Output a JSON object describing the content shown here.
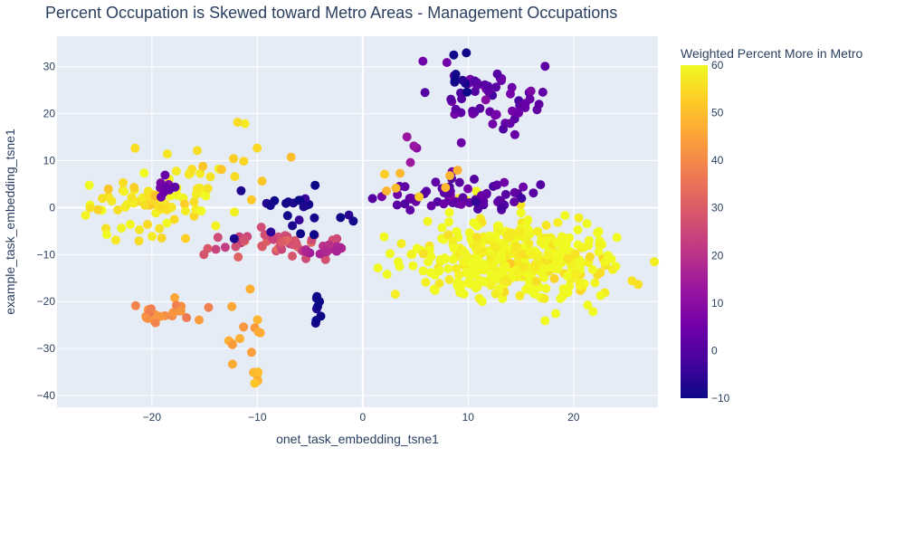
{
  "chart_data": {
    "type": "scatter",
    "title": "Percent Occupation is Skewed toward Metro Areas - Management Occupations",
    "xlabel": "onet_task_embedding_tsne1",
    "ylabel": "example_task_embedding_tsne1",
    "xlim": [
      -29,
      28
    ],
    "ylim": [
      -42.5,
      36.5
    ],
    "xticks": [
      -20,
      -10,
      0,
      10,
      20
    ],
    "yticks": [
      -40,
      -30,
      -20,
      -10,
      0,
      10,
      20,
      30
    ],
    "grid": true,
    "colorbar": {
      "title": "Weighted Percent More in Metro",
      "min": -10,
      "max": 60,
      "ticks": [
        -10,
        0,
        10,
        20,
        30,
        40,
        50,
        60
      ],
      "colorscale": [
        "#0d0887",
        "#46039f",
        "#7201a8",
        "#9c179e",
        "#bd3786",
        "#d8576b",
        "#ed7953",
        "#fb9f3a",
        "#fdca26",
        "#f0f921"
      ]
    },
    "clusters": [
      {
        "name": "Upper right cluster",
        "cx": 12,
        "cy": 23,
        "sx": 2.6,
        "sy": 4.2,
        "n": 60,
        "value": 3
      },
      {
        "name": "Upper right blue points",
        "cx": 9.5,
        "cy": 27,
        "sx": 0.7,
        "sy": 3,
        "n": 8,
        "value": -9
      },
      {
        "name": "Right yellow cluster",
        "cx": 15,
        "cy": -11,
        "sx": 4.8,
        "sy": 4.5,
        "n": 420,
        "value": 60
      },
      {
        "name": "Center purple band",
        "cx": 9,
        "cy": 3,
        "sx": 3.5,
        "sy": 1.8,
        "n": 70,
        "value": 2
      },
      {
        "name": "Center purple points",
        "cx": 5,
        "cy": 14,
        "sx": 0.8,
        "sy": 2.5,
        "n": 4,
        "value": 13
      },
      {
        "name": "Center orange points",
        "cx": 6,
        "cy": 6,
        "sx": 2.5,
        "sy": 2.5,
        "n": 8,
        "value": 50
      },
      {
        "name": "Left yellow cluster",
        "cx": -20,
        "cy": 1,
        "sx": 3.2,
        "sy": 4,
        "n": 90,
        "value": 57
      },
      {
        "name": "Left purple points",
        "cx": -18,
        "cy": 5,
        "sx": 1.2,
        "sy": 2,
        "n": 10,
        "value": 4
      },
      {
        "name": "Lower left orange cluster",
        "cx": -19,
        "cy": -22.5,
        "sx": 1.7,
        "sy": 1.4,
        "n": 28,
        "value": 40
      },
      {
        "name": "Center red cluster",
        "cx": -8,
        "cy": -7.5,
        "sx": 2.6,
        "sy": 1.6,
        "n": 45,
        "value": 28
      },
      {
        "name": "Center magenta cluster",
        "cx": -4,
        "cy": -9,
        "sx": 1.5,
        "sy": 0.8,
        "n": 18,
        "value": 18
      },
      {
        "name": "Center dark blue points",
        "cx": -6,
        "cy": -1.5,
        "sx": 2.5,
        "sy": 3,
        "n": 25,
        "value": -8
      },
      {
        "name": "Center dark blue column",
        "cx": -4.3,
        "cy": -21,
        "sx": 0.2,
        "sy": 1.5,
        "n": 8,
        "value": -9
      },
      {
        "name": "Lower center orange points",
        "cx": -11.5,
        "cy": -27,
        "sx": 0.8,
        "sy": 4,
        "n": 14,
        "value": 47
      },
      {
        "name": "Bottom orange points",
        "cx": -10,
        "cy": -34.5,
        "sx": 0.3,
        "sy": 1.5,
        "n": 5,
        "value": 50
      },
      {
        "name": "Scattered yellow-orange points",
        "cx": -12,
        "cy": 10,
        "sx": 2,
        "sy": 6,
        "n": 10,
        "value": 54
      }
    ]
  }
}
